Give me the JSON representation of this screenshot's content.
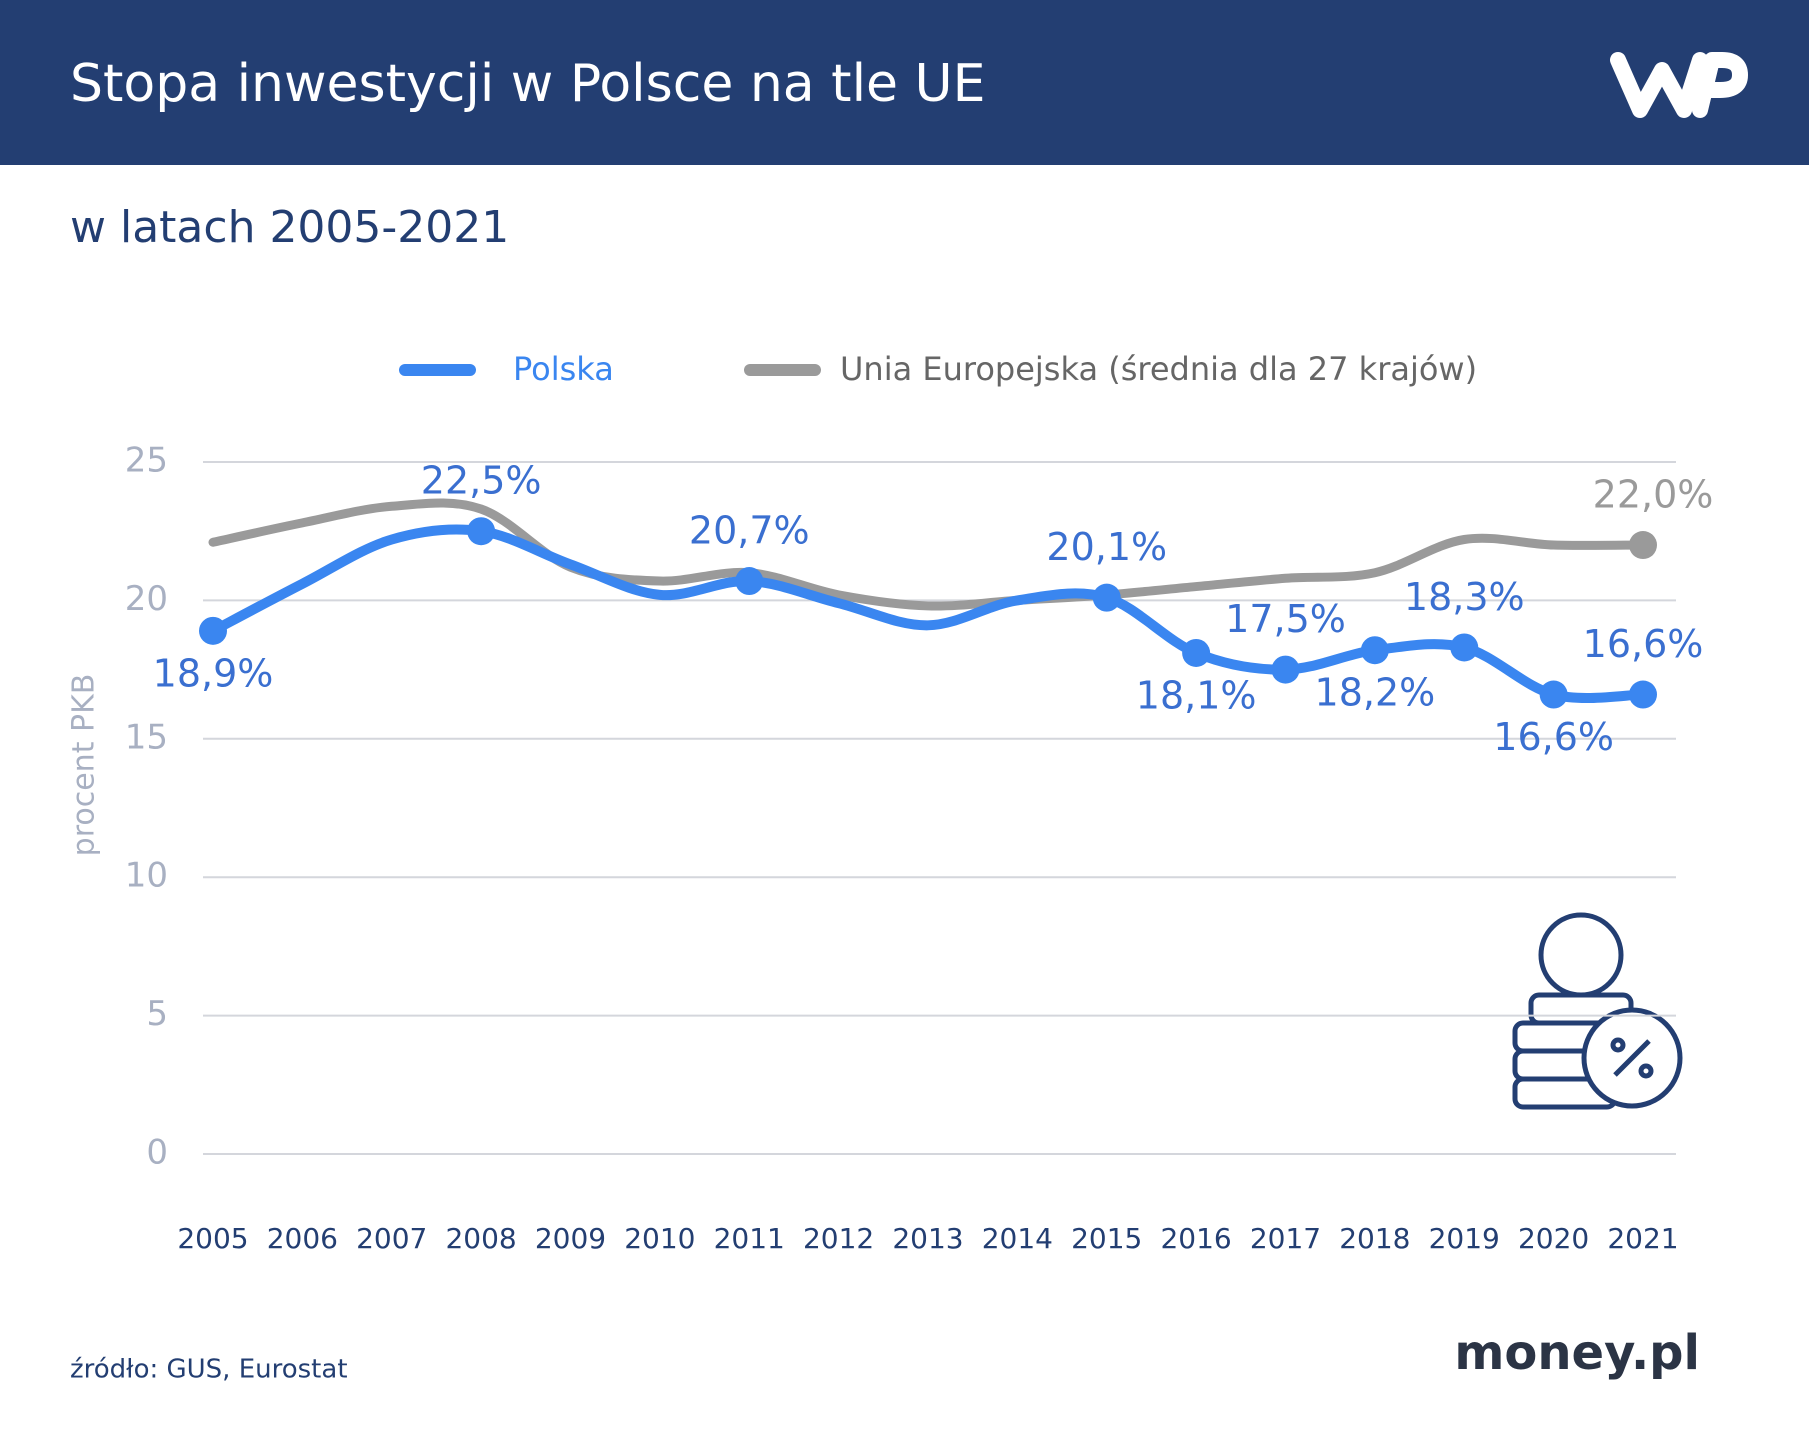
{
  "title": "Stopa inwestycji w Polsce na tle UE",
  "subtitle": "w latach 2005-2021",
  "source": "źródło: GUS, Eurostat",
  "brand": "money.pl",
  "chart_data": {
    "type": "line",
    "y_label": "procent PKB",
    "categories": [
      "2005",
      "2006",
      "2007",
      "2008",
      "2009",
      "2010",
      "2011",
      "2012",
      "2013",
      "2014",
      "2015",
      "2016",
      "2017",
      "2018",
      "2019",
      "2020",
      "2021"
    ],
    "ylim": [
      0,
      25
    ],
    "yticks": [
      0,
      5,
      10,
      15,
      20,
      25
    ],
    "grid": true,
    "legend": "top",
    "series": [
      {
        "name": "Polska",
        "color": "#3a86f0",
        "values": [
          18.9,
          20.6,
          22.2,
          22.5,
          21.3,
          20.2,
          20.7,
          19.9,
          19.1,
          20.0,
          20.1,
          18.1,
          17.5,
          18.2,
          18.3,
          16.6,
          16.6
        ],
        "value_labels": [
          "18,9%",
          null,
          null,
          "22,5%",
          null,
          null,
          "20,7%",
          null,
          null,
          null,
          "20,1%",
          "18,1%",
          "17,5%",
          "18,2%",
          "18,3%",
          "16,6%",
          "16,6%"
        ]
      },
      {
        "name": "Unia Europejska (średnia dla 27 krajów)",
        "color": "#9a9a9a",
        "values": [
          22.1,
          22.8,
          23.4,
          23.3,
          21.2,
          20.7,
          21.0,
          20.2,
          19.8,
          20.0,
          20.2,
          20.5,
          20.8,
          21.0,
          22.2,
          22.0,
          22.0
        ],
        "value_labels": [
          null,
          null,
          null,
          null,
          null,
          null,
          null,
          null,
          null,
          null,
          null,
          null,
          null,
          null,
          null,
          null,
          "22,0%"
        ]
      }
    ]
  }
}
